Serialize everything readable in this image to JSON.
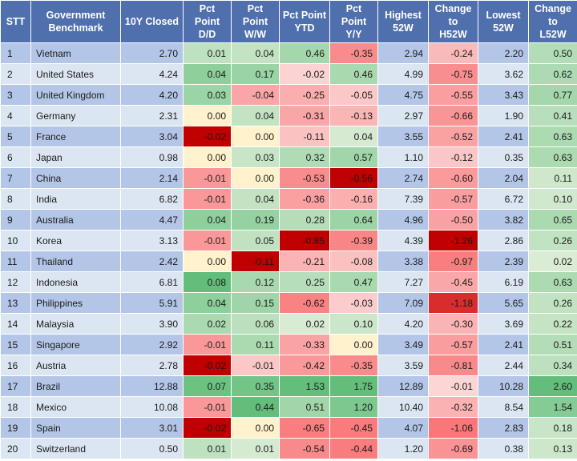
{
  "colors": {
    "header_bg": "#4f6fad",
    "row_odd_bg": "#b4c6e7",
    "row_even_bg": "#dce6f2"
  },
  "columns": [
    {
      "label": "STT",
      "heat": false
    },
    {
      "label": "Government\nBenchmark",
      "heat": false
    },
    {
      "label": "10Y Closed",
      "heat": false
    },
    {
      "label": "Pct\nPoint\nD/D",
      "heat": true
    },
    {
      "label": "Pct\nPoint\nW/W",
      "heat": true
    },
    {
      "label": "Pct Point\nYTD",
      "heat": true
    },
    {
      "label": "Pct\nPoint\nY/Y",
      "heat": true
    },
    {
      "label": "Highest\n52W",
      "heat": false
    },
    {
      "label": "Change\nto\nH52W",
      "heat": true
    },
    {
      "label": "Lowest\n52W",
      "heat": false
    },
    {
      "label": "Change\nto\nL52W",
      "heat": true
    }
  ],
  "rows": [
    [
      "1",
      "Vietnam",
      "2.70",
      "0.01",
      "0.04",
      "0.46",
      "-0.35",
      "2.94",
      "-0.24",
      "2.20",
      "0.50"
    ],
    [
      "2",
      "United States",
      "4.24",
      "0.04",
      "0.17",
      "-0.02",
      "0.46",
      "4.99",
      "-0.75",
      "3.62",
      "0.62"
    ],
    [
      "3",
      "United Kingdom",
      "4.20",
      "0.03",
      "-0.04",
      "-0.25",
      "-0.05",
      "4.75",
      "-0.55",
      "3.43",
      "0.77"
    ],
    [
      "4",
      "Germany",
      "2.31",
      "0.00",
      "0.04",
      "-0.31",
      "-0.13",
      "2.97",
      "-0.66",
      "1.90",
      "0.41"
    ],
    [
      "5",
      "France",
      "3.04",
      "-0.02",
      "0.00",
      "-0.11",
      "0.04",
      "3.55",
      "-0.52",
      "2.41",
      "0.63"
    ],
    [
      "6",
      "Japan",
      "0.98",
      "0.00",
      "0.03",
      "0.32",
      "0.57",
      "1.10",
      "-0.12",
      "0.35",
      "0.63"
    ],
    [
      "7",
      "China",
      "2.14",
      "-0.01",
      "0.00",
      "-0.53",
      "-0.56",
      "2.74",
      "-0.60",
      "2.04",
      "0.11"
    ],
    [
      "8",
      "India",
      "6.82",
      "-0.01",
      "0.04",
      "-0.36",
      "-0.16",
      "7.39",
      "-0.57",
      "6.72",
      "0.10"
    ],
    [
      "9",
      "Australia",
      "4.47",
      "0.04",
      "0.19",
      "0.28",
      "0.64",
      "4.96",
      "-0.50",
      "3.82",
      "0.65"
    ],
    [
      "10",
      "Korea",
      "3.13",
      "-0.01",
      "0.05",
      "-0.85",
      "-0.39",
      "4.39",
      "-1.26",
      "2.86",
      "0.26"
    ],
    [
      "11",
      "Thailand",
      "2.42",
      "0.00",
      "-0.11",
      "-0.21",
      "-0.08",
      "3.38",
      "-0.97",
      "2.39",
      "0.02"
    ],
    [
      "12",
      "Indonesia",
      "6.81",
      "0.08",
      "0.12",
      "0.25",
      "0.47",
      "7.27",
      "-0.45",
      "6.19",
      "0.63"
    ],
    [
      "13",
      "Philippines",
      "5.91",
      "0.04",
      "0.15",
      "-0.62",
      "-0.03",
      "7.09",
      "-1.18",
      "5.65",
      "0.26"
    ],
    [
      "14",
      "Malaysia",
      "3.90",
      "0.02",
      "0.06",
      "0.02",
      "0.10",
      "4.20",
      "-0.30",
      "3.69",
      "0.22"
    ],
    [
      "15",
      "Singapore",
      "2.92",
      "-0.01",
      "0.11",
      "-0.33",
      "0.00",
      "3.49",
      "-0.57",
      "2.41",
      "0.51"
    ],
    [
      "16",
      "Austria",
      "2.78",
      "-0.02",
      "-0.01",
      "-0.42",
      "-0.35",
      "3.59",
      "-0.81",
      "2.44",
      "0.34"
    ],
    [
      "17",
      "Brazil",
      "12.88",
      "0.07",
      "0.35",
      "1.53",
      "1.75",
      "12.89",
      "-0.01",
      "10.28",
      "2.60"
    ],
    [
      "18",
      "Mexico",
      "10.08",
      "-0.01",
      "0.44",
      "0.51",
      "1.20",
      "10.40",
      "-0.32",
      "8.54",
      "1.54"
    ],
    [
      "19",
      "Spain",
      "3.01",
      "-0.02",
      "0.00",
      "-0.65",
      "-0.45",
      "4.07",
      "-1.06",
      "2.83",
      "0.18"
    ],
    [
      "20",
      "Switzerland",
      "0.50",
      "0.01",
      "0.01",
      "-0.54",
      "-0.44",
      "1.20",
      "-0.69",
      "0.38",
      "0.13"
    ]
  ]
}
